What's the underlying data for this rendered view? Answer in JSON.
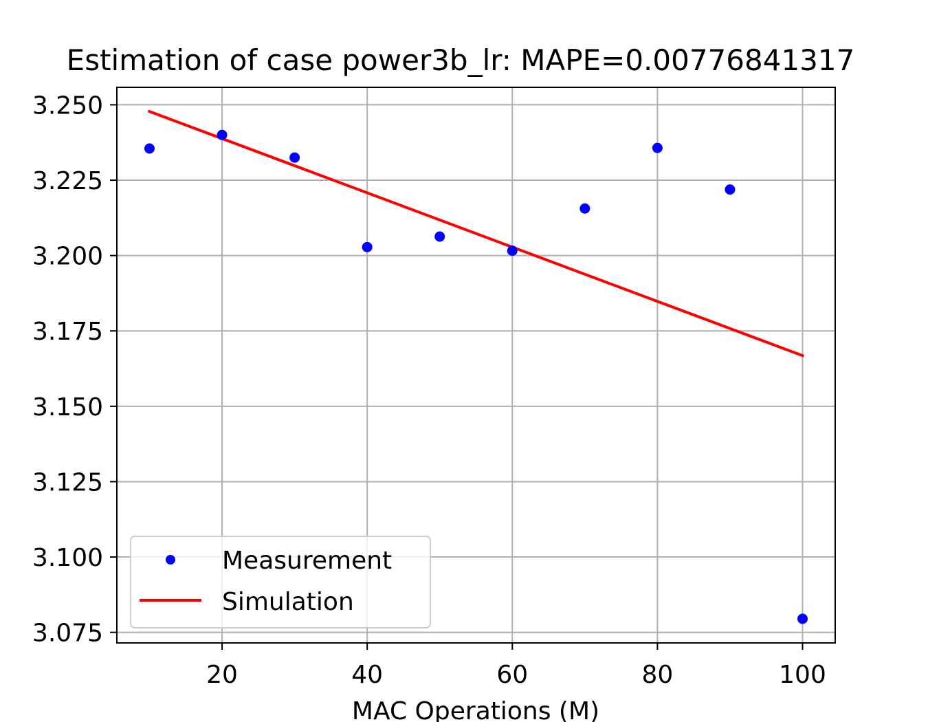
{
  "chart_data": {
    "type": "scatter",
    "title": "Estimation of case power3b_lr: MAPE=0.00776841317",
    "xlabel": "MAC Operations (M)",
    "ylabel": "",
    "xlim": [
      5.5,
      104.5
    ],
    "ylim": [
      3.0715,
      3.2558
    ],
    "x_ticks": [
      20,
      40,
      60,
      80,
      100
    ],
    "x_tick_labels": [
      "20",
      "40",
      "60",
      "80",
      "100"
    ],
    "y_ticks": [
      3.075,
      3.1,
      3.125,
      3.15,
      3.175,
      3.2,
      3.225,
      3.25
    ],
    "y_tick_labels": [
      "3.075",
      "3.100",
      "3.125",
      "3.150",
      "3.175",
      "3.200",
      "3.225",
      "3.250"
    ],
    "grid": true,
    "legend_position": "lower-left",
    "series": [
      {
        "name": "Measurement",
        "kind": "points",
        "color": "#0000ff",
        "x": [
          10,
          20,
          30,
          40,
          50,
          60,
          70,
          80,
          90,
          100
        ],
        "y": [
          3.2355,
          3.24,
          3.2325,
          3.2028,
          3.2063,
          3.2016,
          3.2156,
          3.2357,
          3.2219,
          3.0795
        ]
      },
      {
        "name": "Simulation",
        "kind": "line",
        "color": "#ff0000",
        "x": [
          10,
          100
        ],
        "y": [
          3.2478,
          3.1668
        ]
      }
    ]
  }
}
